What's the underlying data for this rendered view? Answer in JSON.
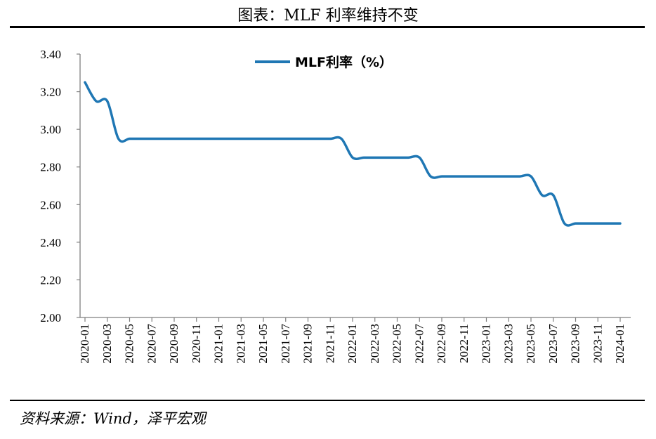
{
  "title": "图表：MLF 利率维持不变",
  "source": "资料来源：Wind，泽平宏观",
  "chart_data": {
    "type": "line",
    "legend": {
      "label": "MLF利率（%）",
      "placement": "top-center"
    },
    "color": "#1f77b4",
    "ylim": [
      2.0,
      3.4
    ],
    "yticks": [
      "2.00",
      "2.20",
      "2.40",
      "2.60",
      "2.80",
      "3.00",
      "3.20",
      "3.40"
    ],
    "xticks": [
      "2020-01",
      "2020-03",
      "2020-05",
      "2020-07",
      "2020-09",
      "2020-11",
      "2021-01",
      "2021-03",
      "2021-05",
      "2021-07",
      "2021-09",
      "2021-11",
      "2022-01",
      "2022-03",
      "2022-05",
      "2022-07",
      "2022-09",
      "2022-11",
      "2023-01",
      "2023-03",
      "2023-05",
      "2023-07",
      "2023-09",
      "2023-11",
      "2024-01"
    ],
    "series": [
      {
        "name": "MLF利率（%）",
        "x": [
          "2020-01",
          "2020-02",
          "2020-03",
          "2020-04",
          "2020-05",
          "2020-06",
          "2020-07",
          "2020-08",
          "2020-09",
          "2020-10",
          "2020-11",
          "2020-12",
          "2021-01",
          "2021-02",
          "2021-03",
          "2021-04",
          "2021-05",
          "2021-06",
          "2021-07",
          "2021-08",
          "2021-09",
          "2021-10",
          "2021-11",
          "2021-12",
          "2022-01",
          "2022-02",
          "2022-03",
          "2022-04",
          "2022-05",
          "2022-06",
          "2022-07",
          "2022-08",
          "2022-09",
          "2022-10",
          "2022-11",
          "2022-12",
          "2023-01",
          "2023-02",
          "2023-03",
          "2023-04",
          "2023-05",
          "2023-06",
          "2023-07",
          "2023-08",
          "2023-09",
          "2023-10",
          "2023-11",
          "2023-12",
          "2024-01"
        ],
        "values": [
          3.25,
          3.15,
          3.15,
          2.95,
          2.95,
          2.95,
          2.95,
          2.95,
          2.95,
          2.95,
          2.95,
          2.95,
          2.95,
          2.95,
          2.95,
          2.95,
          2.95,
          2.95,
          2.95,
          2.95,
          2.95,
          2.95,
          2.95,
          2.95,
          2.85,
          2.85,
          2.85,
          2.85,
          2.85,
          2.85,
          2.85,
          2.75,
          2.75,
          2.75,
          2.75,
          2.75,
          2.75,
          2.75,
          2.75,
          2.75,
          2.75,
          2.65,
          2.65,
          2.5,
          2.5,
          2.5,
          2.5,
          2.5,
          2.5
        ]
      }
    ]
  }
}
